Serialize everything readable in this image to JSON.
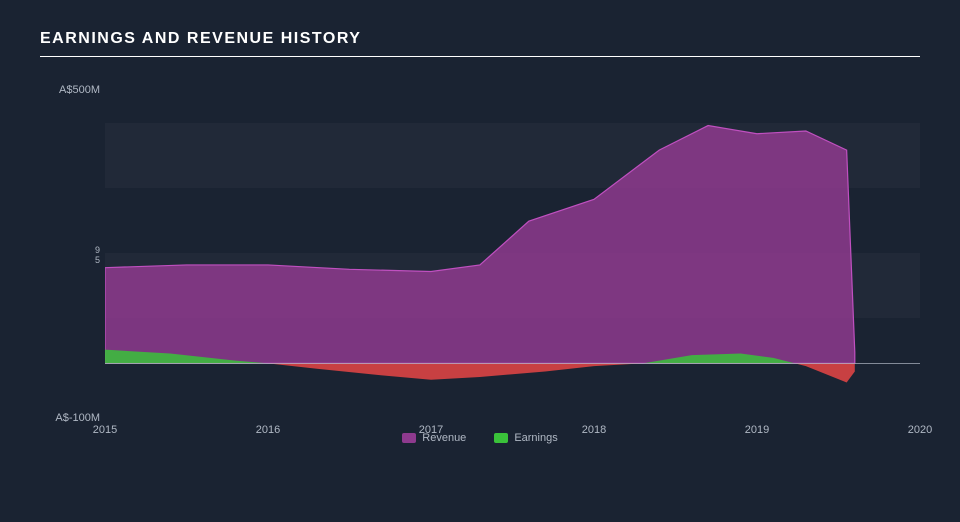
{
  "title": "EARNINGS AND REVENUE HISTORY",
  "chart": {
    "type": "area",
    "background_color": "#1a2332",
    "grid_band_color": "rgba(255,255,255,0.03)",
    "text_color": "#b0b8c4",
    "title_color": "#ffffff",
    "title_fontsize": 16,
    "label_fontsize": 11,
    "y_axis": {
      "min": -100,
      "max": 500,
      "ticks": [
        {
          "value": 500,
          "label": "A$500M"
        },
        {
          "value": -100,
          "label": "A$-100M"
        }
      ],
      "left_marker_top": "9",
      "left_marker_bottom": "5"
    },
    "x_axis": {
      "min": 2015,
      "max": 2020,
      "ticks": [
        {
          "value": 2015,
          "label": "2015"
        },
        {
          "value": 2016,
          "label": "2016"
        },
        {
          "value": 2017,
          "label": "2017"
        },
        {
          "value": 2018,
          "label": "2018"
        },
        {
          "value": 2019,
          "label": "2019"
        },
        {
          "value": 2020,
          "label": "2020"
        }
      ]
    },
    "baseline_value": 0,
    "series": [
      {
        "name": "Revenue",
        "color_fill": "#8e3a8e",
        "color_stroke": "#c050c0",
        "fill_opacity": 0.85,
        "data": [
          {
            "x": 2015.0,
            "y": 175
          },
          {
            "x": 2015.5,
            "y": 180
          },
          {
            "x": 2016.0,
            "y": 180
          },
          {
            "x": 2016.5,
            "y": 172
          },
          {
            "x": 2017.0,
            "y": 168
          },
          {
            "x": 2017.3,
            "y": 180
          },
          {
            "x": 2017.6,
            "y": 260
          },
          {
            "x": 2018.0,
            "y": 300
          },
          {
            "x": 2018.4,
            "y": 390
          },
          {
            "x": 2018.7,
            "y": 435
          },
          {
            "x": 2019.0,
            "y": 420
          },
          {
            "x": 2019.3,
            "y": 425
          },
          {
            "x": 2019.55,
            "y": 390
          },
          {
            "x": 2019.6,
            "y": 20
          }
        ]
      },
      {
        "name": "Earnings",
        "color_pos_fill": "#3ac23a",
        "color_neg_fill": "#e84545",
        "fill_opacity": 0.85,
        "data": [
          {
            "x": 2015.0,
            "y": 25
          },
          {
            "x": 2015.4,
            "y": 18
          },
          {
            "x": 2015.8,
            "y": 5
          },
          {
            "x": 2016.0,
            "y": 0
          },
          {
            "x": 2016.3,
            "y": -10
          },
          {
            "x": 2016.7,
            "y": -22
          },
          {
            "x": 2017.0,
            "y": -30
          },
          {
            "x": 2017.3,
            "y": -25
          },
          {
            "x": 2017.7,
            "y": -15
          },
          {
            "x": 2018.0,
            "y": -5
          },
          {
            "x": 2018.3,
            "y": 0
          },
          {
            "x": 2018.6,
            "y": 15
          },
          {
            "x": 2018.9,
            "y": 18
          },
          {
            "x": 2019.1,
            "y": 10
          },
          {
            "x": 2019.3,
            "y": -5
          },
          {
            "x": 2019.55,
            "y": -35
          },
          {
            "x": 2019.6,
            "y": -15
          }
        ]
      }
    ],
    "legend": [
      {
        "label": "Revenue",
        "color": "#8e3a8e"
      },
      {
        "label": "Earnings",
        "color": "#3ac23a"
      }
    ]
  }
}
